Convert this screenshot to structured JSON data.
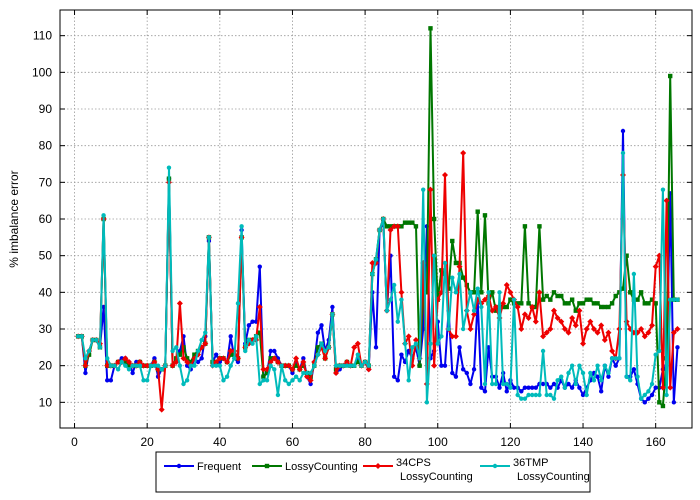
{
  "chart_data": {
    "type": "line",
    "ylabel": "% imbalance error",
    "xlabel": "",
    "xlim": [
      -4,
      170
    ],
    "ylim": [
      3,
      117
    ],
    "xticks": [
      0,
      20,
      40,
      60,
      80,
      100,
      120,
      140,
      160
    ],
    "yticks": [
      10,
      20,
      30,
      40,
      50,
      60,
      70,
      80,
      90,
      100,
      110
    ],
    "grid": true,
    "legend_position": "bottom",
    "series": [
      {
        "name": "Frequent",
        "color": "#0000ee",
        "marker": "circle",
        "x": [
          1,
          2,
          3,
          4,
          5,
          6,
          7,
          8,
          9,
          10,
          11,
          12,
          13,
          14,
          15,
          16,
          17,
          18,
          19,
          20,
          21,
          22,
          23,
          24,
          25,
          26,
          27,
          28,
          29,
          30,
          31,
          32,
          33,
          34,
          35,
          36,
          37,
          38,
          39,
          40,
          41,
          42,
          43,
          44,
          45,
          46,
          47,
          48,
          49,
          50,
          51,
          52,
          53,
          54,
          55,
          56,
          57,
          58,
          59,
          60,
          61,
          62,
          63,
          64,
          65,
          66,
          67,
          68,
          69,
          70,
          71,
          72,
          73,
          74,
          75,
          76,
          77,
          78,
          79,
          80,
          81,
          82,
          83,
          84,
          85,
          86,
          87,
          88,
          89,
          90,
          91,
          92,
          93,
          94,
          95,
          96,
          97,
          98,
          99,
          100,
          101,
          102,
          103,
          104,
          105,
          106,
          107,
          108,
          109,
          110,
          111,
          112,
          113,
          114,
          115,
          116,
          117,
          118,
          119,
          120,
          121,
          122,
          123,
          124,
          125,
          126,
          127,
          128,
          129,
          130,
          131,
          132,
          133,
          134,
          135,
          136,
          137,
          138,
          139,
          140,
          141,
          142,
          143,
          144,
          145,
          146,
          147,
          148,
          149,
          150,
          151,
          152,
          153,
          154,
          155,
          156,
          157,
          158,
          159,
          160,
          161,
          162,
          163,
          164,
          165,
          166
        ],
        "y": [
          28,
          28,
          18,
          24,
          27,
          27,
          25,
          36,
          16,
          16,
          20,
          21,
          22,
          22,
          21,
          18,
          21,
          21,
          20,
          20,
          20,
          22,
          17,
          19,
          20,
          71,
          20,
          21,
          24,
          28,
          20,
          19,
          22,
          21,
          22,
          28,
          54,
          21,
          23,
          21,
          22,
          21,
          28,
          22,
          21,
          57,
          26,
          31,
          32,
          32,
          47,
          17,
          18,
          24,
          24,
          22,
          20,
          20,
          20,
          18,
          21,
          19,
          22,
          17,
          15,
          21,
          29,
          31,
          24,
          27,
          36,
          18,
          19,
          20,
          21,
          20,
          20,
          22,
          20,
          21,
          19,
          40,
          25,
          57,
          59,
          35,
          50,
          17,
          16,
          23,
          21,
          24,
          22,
          25,
          20,
          30,
          58,
          22,
          24,
          32,
          20,
          20,
          35,
          18,
          17,
          25,
          19,
          18,
          15,
          19,
          38,
          14,
          13,
          25,
          17,
          17,
          14,
          18,
          13,
          16,
          14,
          14,
          13,
          14,
          14,
          14,
          14,
          15,
          15,
          15,
          14,
          15,
          14,
          16,
          14,
          15,
          14,
          16,
          14,
          12,
          14,
          16,
          18,
          17,
          13,
          20,
          17,
          22,
          20,
          22,
          84,
          17,
          17,
          19,
          15,
          11,
          10,
          11,
          12,
          14,
          14,
          19,
          20,
          67,
          10,
          25
        ]
      },
      {
        "name": "LossyCounting",
        "color": "#007700",
        "marker": "square",
        "x": [
          1,
          2,
          3,
          4,
          5,
          6,
          7,
          8,
          9,
          10,
          11,
          12,
          13,
          14,
          15,
          16,
          17,
          18,
          19,
          20,
          21,
          22,
          23,
          24,
          25,
          26,
          27,
          28,
          29,
          30,
          31,
          32,
          33,
          34,
          35,
          36,
          37,
          38,
          39,
          40,
          41,
          42,
          43,
          44,
          45,
          46,
          47,
          48,
          49,
          50,
          51,
          52,
          53,
          54,
          55,
          56,
          57,
          58,
          59,
          60,
          61,
          62,
          63,
          64,
          65,
          66,
          67,
          68,
          69,
          70,
          71,
          72,
          73,
          74,
          75,
          76,
          77,
          78,
          79,
          80,
          81,
          82,
          83,
          84,
          85,
          86,
          87,
          88,
          89,
          90,
          91,
          92,
          93,
          94,
          95,
          96,
          97,
          98,
          99,
          100,
          101,
          102,
          103,
          104,
          105,
          106,
          107,
          108,
          109,
          110,
          111,
          112,
          113,
          114,
          115,
          116,
          117,
          118,
          119,
          120,
          121,
          122,
          123,
          124,
          125,
          126,
          127,
          128,
          129,
          130,
          131,
          132,
          133,
          134,
          135,
          136,
          137,
          138,
          139,
          140,
          141,
          142,
          143,
          144,
          145,
          146,
          147,
          148,
          149,
          150,
          151,
          152,
          153,
          154,
          155,
          156,
          157,
          158,
          159,
          160,
          161,
          162,
          163,
          164,
          165,
          166
        ],
        "y": [
          28,
          28,
          20,
          23,
          27,
          27,
          25,
          60,
          20,
          20,
          20,
          21,
          21,
          21,
          20,
          20,
          20,
          21,
          20,
          20,
          20,
          21,
          19,
          19,
          20,
          71,
          20,
          22,
          23,
          25,
          22,
          21,
          23,
          24,
          25,
          26,
          55,
          21,
          21,
          22,
          22,
          21,
          23,
          23,
          22,
          55,
          25,
          27,
          27,
          28,
          29,
          17,
          18,
          22,
          22,
          21,
          20,
          20,
          20,
          19,
          20,
          19,
          20,
          18,
          17,
          20,
          25,
          26,
          22,
          25,
          34,
          19,
          20,
          20,
          21,
          20,
          20,
          21,
          20,
          21,
          20,
          45,
          49,
          57,
          60,
          58,
          58,
          58,
          58,
          58,
          59,
          59,
          59,
          58,
          20,
          40,
          40,
          112,
          60,
          38,
          46,
          45,
          41,
          54,
          48,
          48,
          44,
          42,
          40,
          40,
          62,
          40,
          61,
          37,
          40,
          35,
          36,
          36,
          36,
          38,
          37,
          37,
          37,
          58,
          37,
          36,
          36,
          58,
          38,
          39,
          38,
          40,
          39,
          39,
          37,
          37,
          38,
          35,
          37,
          37,
          38,
          38,
          37,
          37,
          36,
          36,
          36,
          37,
          39,
          40,
          41,
          50,
          40,
          38,
          38,
          40,
          37,
          37,
          38,
          37,
          10,
          9,
          22,
          99,
          38,
          38
        ]
      },
      {
        "name": "34CPS\nLossyCounting",
        "color": "#ee0000",
        "marker": "diamond",
        "x": [
          1,
          2,
          3,
          4,
          5,
          6,
          7,
          8,
          9,
          10,
          11,
          12,
          13,
          14,
          15,
          16,
          17,
          18,
          19,
          20,
          21,
          22,
          23,
          24,
          25,
          26,
          27,
          28,
          29,
          30,
          31,
          32,
          33,
          34,
          35,
          36,
          37,
          38,
          39,
          40,
          41,
          42,
          43,
          44,
          45,
          46,
          47,
          48,
          49,
          50,
          51,
          52,
          53,
          54,
          55,
          56,
          57,
          58,
          59,
          60,
          61,
          62,
          63,
          64,
          65,
          66,
          67,
          68,
          69,
          70,
          71,
          72,
          73,
          74,
          75,
          76,
          77,
          78,
          79,
          80,
          81,
          82,
          83,
          84,
          85,
          86,
          87,
          88,
          89,
          90,
          91,
          92,
          93,
          94,
          95,
          96,
          97,
          98,
          99,
          100,
          101,
          102,
          103,
          104,
          105,
          106,
          107,
          108,
          109,
          110,
          111,
          112,
          113,
          114,
          115,
          116,
          117,
          118,
          119,
          120,
          121,
          122,
          123,
          124,
          125,
          126,
          127,
          128,
          129,
          130,
          131,
          132,
          133,
          134,
          135,
          136,
          137,
          138,
          139,
          140,
          141,
          142,
          143,
          144,
          145,
          146,
          147,
          148,
          149,
          150,
          151,
          152,
          153,
          154,
          155,
          156,
          157,
          158,
          159,
          160,
          161,
          162,
          163,
          164,
          165,
          166
        ],
        "y": [
          28,
          28,
          20,
          24,
          27,
          27,
          26,
          60,
          20,
          20,
          20,
          21,
          21,
          22,
          21,
          20,
          20,
          21,
          20,
          20,
          20,
          21,
          19,
          8,
          20,
          70,
          20,
          21,
          37,
          22,
          21,
          20,
          22,
          23,
          25,
          26,
          55,
          20,
          21,
          22,
          22,
          21,
          24,
          24,
          22,
          55,
          25,
          26,
          27,
          27,
          36,
          19,
          19,
          21,
          22,
          21,
          20,
          20,
          20,
          19,
          22,
          19,
          21,
          17,
          16,
          21,
          23,
          25,
          22,
          25,
          34,
          18,
          20,
          20,
          21,
          20,
          25,
          26,
          20,
          21,
          19,
          48,
          48,
          57,
          60,
          35,
          57,
          58,
          58,
          40,
          26,
          28,
          20,
          27,
          22,
          48,
          15,
          68,
          20,
          38,
          40,
          72,
          30,
          28,
          28,
          47,
          78,
          35,
          30,
          34,
          38,
          37,
          38,
          39,
          35,
          36,
          33,
          37,
          42,
          40,
          38,
          36,
          30,
          34,
          33,
          36,
          32,
          40,
          28,
          29,
          30,
          35,
          33,
          32,
          30,
          29,
          33,
          31,
          35,
          26,
          30,
          32,
          30,
          29,
          31,
          27,
          29,
          24,
          22,
          30,
          72,
          32,
          30,
          29,
          29,
          30,
          28,
          29,
          31,
          47,
          50,
          14,
          65,
          14,
          29,
          30
        ]
      },
      {
        "name": "36TMP\nLossyCounting",
        "color": "#00bbbb",
        "marker": "circle",
        "x": [
          1,
          2,
          3,
          4,
          5,
          6,
          7,
          8,
          9,
          10,
          11,
          12,
          13,
          14,
          15,
          16,
          17,
          18,
          19,
          20,
          21,
          22,
          23,
          24,
          25,
          26,
          27,
          28,
          29,
          30,
          31,
          32,
          33,
          34,
          35,
          36,
          37,
          38,
          39,
          40,
          41,
          42,
          43,
          44,
          45,
          46,
          47,
          48,
          49,
          50,
          51,
          52,
          53,
          54,
          55,
          56,
          57,
          58,
          59,
          60,
          61,
          62,
          63,
          64,
          65,
          66,
          67,
          68,
          69,
          70,
          71,
          72,
          73,
          74,
          75,
          76,
          77,
          78,
          79,
          80,
          81,
          82,
          83,
          84,
          85,
          86,
          87,
          88,
          89,
          90,
          91,
          92,
          93,
          94,
          95,
          96,
          97,
          98,
          99,
          100,
          101,
          102,
          103,
          104,
          105,
          106,
          107,
          108,
          109,
          110,
          111,
          112,
          113,
          114,
          115,
          116,
          117,
          118,
          119,
          120,
          121,
          122,
          123,
          124,
          125,
          126,
          127,
          128,
          129,
          130,
          131,
          132,
          133,
          134,
          135,
          136,
          137,
          138,
          139,
          140,
          141,
          142,
          143,
          144,
          145,
          146,
          147,
          148,
          149,
          150,
          151,
          152,
          153,
          154,
          155,
          156,
          157,
          158,
          159,
          160,
          161,
          162,
          163,
          164,
          165,
          166
        ],
        "y": [
          28,
          28,
          22,
          24,
          27,
          27,
          25,
          61,
          22,
          20,
          20,
          19,
          21,
          20,
          19,
          20,
          20,
          20,
          16,
          16,
          20,
          20,
          20,
          19,
          20,
          74,
          24,
          25,
          20,
          15,
          16,
          20,
          20,
          24,
          27,
          29,
          55,
          20,
          20,
          20,
          16,
          17,
          20,
          22,
          37,
          58,
          24,
          27,
          26,
          28,
          15,
          16,
          16,
          20,
          19,
          12,
          20,
          16,
          15,
          16,
          17,
          16,
          18,
          18,
          18,
          20,
          23,
          26,
          24,
          25,
          34,
          20,
          20,
          20,
          20,
          20,
          20,
          23,
          20,
          21,
          20,
          45,
          49,
          57,
          60,
          35,
          38,
          42,
          32,
          38,
          26,
          16,
          25,
          26,
          22,
          68,
          10,
          26,
          50,
          26,
          28,
          48,
          30,
          44,
          40,
          45,
          30,
          35,
          40,
          35,
          41,
          36,
          15,
          40,
          15,
          15,
          40,
          15,
          15,
          14,
          38,
          12,
          11,
          11,
          12,
          12,
          12,
          12,
          24,
          12,
          12,
          11,
          16,
          17,
          14,
          18,
          20,
          15,
          20,
          18,
          12,
          18,
          16,
          20,
          16,
          20,
          18,
          22,
          22,
          22,
          78,
          17,
          16,
          45,
          17,
          11,
          12,
          13,
          15,
          23,
          24,
          68,
          12,
          38,
          38,
          38
        ]
      }
    ]
  }
}
